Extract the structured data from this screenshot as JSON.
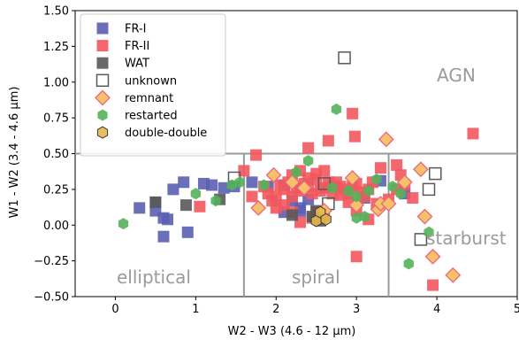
{
  "chart_data": {
    "type": "scatter",
    "xlabel": "W2 - W3 (4.6 - 12 μm)",
    "ylabel": "W1 - W2 (3.4 - 4.6 μm)",
    "xlim": [
      -0.5,
      5.0
    ],
    "ylim": [
      -0.5,
      1.5
    ],
    "xticks": [
      "0",
      "1",
      "2",
      "3",
      "4",
      "5"
    ],
    "yticks": [
      "−0.50",
      "−0.25",
      "0.00",
      "0.25",
      "0.50",
      "0.75",
      "1.00",
      "1.25",
      "1.50"
    ],
    "grid": false,
    "legend_position": "top-left",
    "region_labels": {
      "agn": "AGN",
      "elliptical": "elliptical",
      "spiral": "spiral",
      "starburst": "starburst"
    },
    "divider_lines": {
      "horizontal_y": 0.5,
      "vertical_x": [
        1.6,
        3.4
      ]
    },
    "series": [
      {
        "name": "FR-I",
        "marker": "square",
        "color": "#5b5fb3",
        "points": [
          [
            0.3,
            0.12
          ],
          [
            0.5,
            0.1
          ],
          [
            0.5,
            0.16
          ],
          [
            0.6,
            0.05
          ],
          [
            0.65,
            0.04
          ],
          [
            0.6,
            -0.08
          ],
          [
            0.72,
            0.25
          ],
          [
            0.85,
            0.3
          ],
          [
            0.9,
            -0.05
          ],
          [
            1.1,
            0.29
          ],
          [
            1.2,
            0.28
          ],
          [
            1.35,
            0.26
          ],
          [
            1.48,
            0.27
          ],
          [
            1.7,
            0.3
          ],
          [
            1.9,
            0.27
          ],
          [
            2.1,
            0.28
          ],
          [
            2.2,
            0.17
          ],
          [
            2.3,
            0.12
          ],
          [
            2.4,
            0.18
          ],
          [
            2.5,
            0.09
          ],
          [
            2.1,
            0.09
          ],
          [
            2.3,
            0.1
          ],
          [
            3.1,
            0.19
          ],
          [
            3.3,
            0.31
          ],
          [
            3.6,
            0.22
          ]
        ]
      },
      {
        "name": "FR-II",
        "marker": "square",
        "color": "#f2575e",
        "points": [
          [
            1.05,
            0.13
          ],
          [
            1.6,
            0.38
          ],
          [
            1.75,
            0.49
          ],
          [
            1.7,
            0.2
          ],
          [
            1.85,
            0.27
          ],
          [
            1.9,
            0.22
          ],
          [
            1.95,
            0.17
          ],
          [
            2.0,
            0.12
          ],
          [
            2.05,
            0.28
          ],
          [
            2.1,
            0.25
          ],
          [
            2.15,
            0.3
          ],
          [
            2.2,
            0.2
          ],
          [
            2.25,
            0.26
          ],
          [
            2.3,
            0.24
          ],
          [
            2.35,
            0.29
          ],
          [
            2.4,
            0.27
          ],
          [
            2.45,
            0.22
          ],
          [
            2.5,
            0.32
          ],
          [
            2.55,
            0.24
          ],
          [
            2.6,
            0.26
          ],
          [
            2.65,
            0.3
          ],
          [
            2.7,
            0.22
          ],
          [
            2.75,
            0.3
          ],
          [
            2.8,
            0.27
          ],
          [
            2.85,
            0.25
          ],
          [
            2.9,
            0.22
          ],
          [
            2.95,
            0.27
          ],
          [
            3.0,
            0.29
          ],
          [
            3.05,
            0.23
          ],
          [
            3.1,
            0.2
          ],
          [
            3.15,
            0.25
          ],
          [
            2.2,
            0.35
          ],
          [
            2.3,
            0.38
          ],
          [
            2.4,
            0.33
          ],
          [
            2.5,
            0.36
          ],
          [
            2.6,
            0.38
          ],
          [
            2.7,
            0.27
          ],
          [
            2.8,
            0.21
          ],
          [
            2.9,
            0.16
          ],
          [
            2.0,
            0.2
          ],
          [
            2.1,
            0.14
          ],
          [
            2.2,
            0.09
          ],
          [
            2.5,
            0.09
          ],
          [
            2.6,
            0.06
          ],
          [
            2.4,
            0.54
          ],
          [
            2.65,
            0.59
          ],
          [
            2.95,
            0.78
          ],
          [
            2.98,
            0.62
          ],
          [
            3.0,
            0.1
          ],
          [
            3.2,
            0.3
          ],
          [
            3.3,
            0.4
          ],
          [
            3.5,
            0.42
          ],
          [
            3.55,
            0.35
          ],
          [
            3.6,
            0.28
          ],
          [
            3.7,
            0.19
          ],
          [
            3.25,
            0.15
          ],
          [
            3.15,
            0.04
          ],
          [
            3.0,
            -0.22
          ],
          [
            3.95,
            -0.42
          ],
          [
            4.45,
            0.64
          ],
          [
            3.5,
            0.25
          ],
          [
            3.4,
            0.18
          ],
          [
            2.3,
            0.02
          ],
          [
            2.45,
            0.05
          ]
        ]
      },
      {
        "name": "WAT",
        "marker": "square",
        "color": "#595959",
        "points": [
          [
            0.5,
            0.16
          ],
          [
            0.88,
            0.14
          ],
          [
            1.3,
            0.18
          ],
          [
            2.2,
            0.07
          ],
          [
            2.45,
            0.06
          ],
          [
            2.5,
            0.1
          ],
          [
            2.55,
            0.03
          ],
          [
            2.58,
            0.08
          ]
        ]
      },
      {
        "name": "unknown",
        "marker": "open-square",
        "color": "#595959",
        "points": [
          [
            1.48,
            0.33
          ],
          [
            2.6,
            0.29
          ],
          [
            2.65,
            0.15
          ],
          [
            2.85,
            1.17
          ],
          [
            3.9,
            0.25
          ],
          [
            3.98,
            0.36
          ],
          [
            3.8,
            -0.1
          ]
        ]
      },
      {
        "name": "remnant",
        "marker": "diamond",
        "color": "#f7c06a",
        "edge": "#e8667a",
        "points": [
          [
            1.78,
            0.12
          ],
          [
            1.97,
            0.35
          ],
          [
            2.2,
            0.3
          ],
          [
            2.35,
            0.26
          ],
          [
            2.6,
            0.1
          ],
          [
            2.95,
            0.33
          ],
          [
            3.0,
            0.14
          ],
          [
            3.27,
            0.11
          ],
          [
            3.37,
            0.6
          ],
          [
            3.3,
            0.15
          ],
          [
            3.8,
            0.39
          ],
          [
            3.85,
            0.06
          ],
          [
            4.2,
            -0.35
          ],
          [
            3.6,
            0.3
          ],
          [
            3.4,
            0.15
          ],
          [
            3.95,
            -0.22
          ]
        ]
      },
      {
        "name": "restarted",
        "marker": "hexagon",
        "color": "#54b35a",
        "points": [
          [
            0.1,
            0.01
          ],
          [
            1.0,
            0.22
          ],
          [
            1.25,
            0.17
          ],
          [
            1.45,
            0.28
          ],
          [
            1.55,
            0.3
          ],
          [
            1.85,
            0.28
          ],
          [
            2.25,
            0.37
          ],
          [
            2.4,
            0.45
          ],
          [
            2.75,
            0.81
          ],
          [
            2.7,
            0.26
          ],
          [
            2.9,
            0.24
          ],
          [
            3.0,
            0.2
          ],
          [
            3.15,
            0.24
          ],
          [
            3.0,
            0.05
          ],
          [
            3.1,
            0.06
          ],
          [
            3.55,
            0.22
          ],
          [
            3.65,
            -0.27
          ],
          [
            3.9,
            -0.05
          ],
          [
            3.25,
            0.32
          ],
          [
            3.45,
            0.27
          ]
        ]
      },
      {
        "name": "double-double",
        "marker": "hexagon",
        "color": "#e6b84a",
        "edge": "#3a3a3a",
        "points": [
          [
            2.5,
            0.03
          ],
          [
            2.55,
            0.09
          ],
          [
            2.62,
            0.04
          ]
        ]
      }
    ]
  }
}
